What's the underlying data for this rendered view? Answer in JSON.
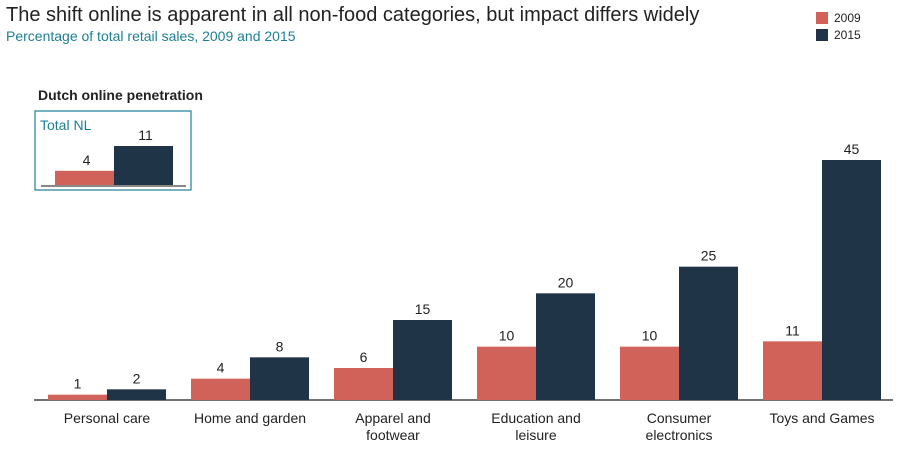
{
  "title": "The shift online is apparent in all non-food categories, but impact differs widely",
  "subtitle": "Percentage of total retail sales, 2009 and 2015",
  "colors": {
    "s2009": "#d0625a",
    "s2015": "#1f3547",
    "accent": "#1d7f95"
  },
  "inset": {
    "heading": "Dutch online penetration",
    "label": "Total NL",
    "values": [
      4,
      11
    ]
  },
  "chart_data": {
    "type": "bar",
    "title": "The shift online is apparent in all non-food categories, but impact differs widely",
    "subtitle": "Percentage of total retail sales, 2009 and 2015",
    "categories": [
      [
        "Personal care"
      ],
      [
        "Home and garden"
      ],
      [
        "Apparel and",
        "footwear"
      ],
      [
        "Education and",
        "leisure"
      ],
      [
        "Consumer",
        "electronics"
      ],
      [
        "Toys and Games"
      ]
    ],
    "series": [
      {
        "name": "2009",
        "color": "#d0625a",
        "values": [
          1,
          4,
          6,
          10,
          10,
          11
        ]
      },
      {
        "name": "2015",
        "color": "#1f3547",
        "values": [
          2,
          8,
          15,
          20,
          25,
          45
        ]
      }
    ],
    "ylim": [
      0,
      45
    ],
    "legend_position": "top-right",
    "grid": false
  }
}
